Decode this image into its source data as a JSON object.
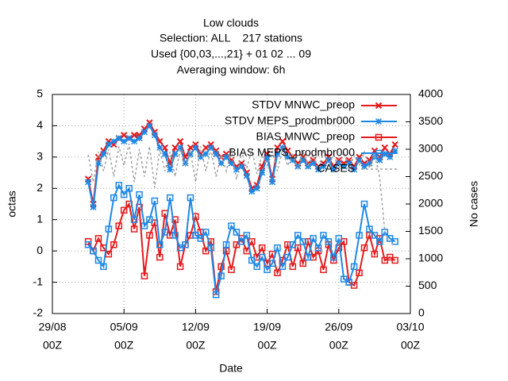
{
  "chart_data": {
    "type": "line",
    "title": [
      "Low clouds",
      "Selection: ALL    217 stations",
      "Used {00,03,...,21} + 01 02 ... 09",
      "Averaging window:  6h"
    ],
    "xlabel": "Date",
    "ylabel": "octas",
    "y2label": "No cases",
    "xlim": [
      "29/08 00Z",
      "03/10 00Z"
    ],
    "xticks": [
      {
        "value": "29/08 00Z",
        "label": "29/08",
        "sublabel": "00Z"
      },
      {
        "value": "05/09 00Z",
        "label": "05/09",
        "sublabel": "00Z"
      },
      {
        "value": "12/09 00Z",
        "label": "12/09",
        "sublabel": "00Z"
      },
      {
        "value": "19/09 00Z",
        "label": "19/09",
        "sublabel": "00Z"
      },
      {
        "value": "26/09 00Z",
        "label": "26/09",
        "sublabel": "00Z"
      },
      {
        "value": "03/10 00Z",
        "label": "03/10",
        "sublabel": "00Z"
      }
    ],
    "ylim": [
      -2,
      5
    ],
    "yticks": [
      -2,
      -1,
      0,
      1,
      2,
      3,
      4,
      5
    ],
    "y2lim": [
      0,
      4000
    ],
    "y2ticks": [
      0,
      500,
      1000,
      1500,
      2000,
      2500,
      3000,
      3500,
      4000
    ],
    "grid": true,
    "legend": "top right",
    "x": [
      "01/09 12Z",
      "02/09 00Z",
      "02/09 12Z",
      "03/09 00Z",
      "03/09 12Z",
      "04/09 00Z",
      "04/09 12Z",
      "05/09 00Z",
      "05/09 12Z",
      "06/09 00Z",
      "06/09 12Z",
      "07/09 00Z",
      "07/09 12Z",
      "08/09 00Z",
      "08/09 12Z",
      "09/09 00Z",
      "09/09 12Z",
      "10/09 00Z",
      "10/09 12Z",
      "11/09 00Z",
      "11/09 12Z",
      "12/09 00Z",
      "12/09 12Z",
      "13/09 00Z",
      "13/09 12Z",
      "14/09 00Z",
      "14/09 12Z",
      "15/09 00Z",
      "15/09 12Z",
      "16/09 00Z",
      "16/09 12Z",
      "17/09 00Z",
      "17/09 12Z",
      "18/09 00Z",
      "18/09 12Z",
      "19/09 00Z",
      "19/09 12Z",
      "20/09 00Z",
      "20/09 12Z",
      "21/09 00Z",
      "21/09 12Z",
      "22/09 00Z",
      "22/09 12Z",
      "23/09 00Z",
      "23/09 12Z",
      "24/09 00Z",
      "24/09 12Z",
      "25/09 00Z",
      "25/09 12Z",
      "26/09 00Z",
      "26/09 12Z",
      "27/09 00Z",
      "27/09 12Z",
      "28/09 00Z",
      "28/09 12Z",
      "29/09 00Z",
      "29/09 12Z",
      "30/09 00Z",
      "30/09 12Z",
      "01/10 00Z",
      "01/10 12Z"
    ],
    "series": [
      {
        "name": "STDV MNWC_preop",
        "color": "#e41a1c",
        "marker": "x",
        "values": [
          2.3,
          1.5,
          3.0,
          3.2,
          3.5,
          3.4,
          3.6,
          3.7,
          3.6,
          3.7,
          3.7,
          3.9,
          4.1,
          3.8,
          3.5,
          3.3,
          2.8,
          3.3,
          3.5,
          3.0,
          3.3,
          3.4,
          3.1,
          3.3,
          3.4,
          3.2,
          3.0,
          3.1,
          2.9,
          2.7,
          2.8,
          2.5,
          2.0,
          2.1,
          2.7,
          3.1,
          2.3,
          3.3,
          3.5,
          3.2,
          3.0,
          2.8,
          3.0,
          2.8,
          2.9,
          2.7,
          2.8,
          3.0,
          2.7,
          2.9,
          2.8,
          2.9,
          2.7,
          3.0,
          2.8,
          2.9,
          3.2,
          3.0,
          3.3,
          3.1,
          3.4
        ]
      },
      {
        "name": "STDV MEPS_prodmbr000",
        "color": "#1e88e5",
        "marker": "star",
        "values": [
          2.2,
          1.4,
          2.8,
          3.1,
          3.4,
          3.5,
          3.6,
          3.5,
          3.6,
          3.5,
          3.6,
          3.8,
          4.0,
          3.7,
          3.3,
          3.1,
          2.6,
          3.1,
          3.3,
          2.8,
          3.1,
          3.3,
          3.0,
          3.1,
          3.3,
          3.1,
          2.8,
          3.0,
          2.8,
          2.6,
          2.7,
          2.4,
          1.9,
          2.0,
          2.5,
          3.0,
          2.2,
          3.1,
          3.3,
          3.0,
          2.9,
          2.7,
          2.9,
          2.7,
          2.8,
          2.6,
          2.7,
          2.9,
          2.6,
          2.8,
          2.7,
          2.8,
          2.6,
          2.9,
          2.7,
          2.8,
          3.0,
          2.9,
          3.1,
          3.0,
          3.2
        ]
      },
      {
        "name": "BIAS MNWC_preop",
        "color": "#e41a1c",
        "marker": "square",
        "values": [
          0.3,
          0.0,
          0.4,
          0.1,
          -0.1,
          0.2,
          0.8,
          1.3,
          1.5,
          0.7,
          1.4,
          -0.8,
          0.5,
          0.9,
          -0.2,
          1.2,
          0.5,
          1.0,
          -0.5,
          0.2,
          0.5,
          1.1,
          0.6,
          0.0,
          0.3,
          -1.3,
          -0.5,
          0.0,
          -0.6,
          0.2,
          0.4,
          0.0,
          0.3,
          -0.2,
          0.1,
          -0.4,
          -0.1,
          -0.7,
          -0.3,
          0.2,
          -0.5,
          0.1,
          -0.4,
          0.3,
          -0.2,
          0.0,
          -0.6,
          0.2,
          -0.3,
          0.1,
          0.3,
          -1.0,
          -1.1,
          -0.7,
          0.1,
          0.5,
          -0.1,
          0.4,
          -0.3,
          -0.2,
          -0.3
        ]
      },
      {
        "name": "BIAS MEPS_prodmbr000",
        "color": "#1e88e5",
        "marker": "square",
        "values": [
          0.2,
          0.0,
          -0.3,
          -0.5,
          0.7,
          1.7,
          2.1,
          1.8,
          2.0,
          1.0,
          1.8,
          0.8,
          1.0,
          1.6,
          0.2,
          0.6,
          1.7,
          0.5,
          0.1,
          0.2,
          1.7,
          0.5,
          0.4,
          0.6,
          0.1,
          -1.4,
          -0.8,
          0.2,
          0.8,
          0.6,
          0.3,
          0.5,
          -0.3,
          -0.5,
          -0.2,
          -0.6,
          -0.4,
          0.1,
          -0.5,
          -0.2,
          0.2,
          0.5,
          0.3,
          -0.2,
          0.4,
          0.1,
          0.5,
          0.3,
          -0.2,
          0.4,
          -0.9,
          -1.0,
          -0.5,
          0.5,
          1.5,
          0.7,
          0.5,
          0.3,
          0.6,
          0.4,
          0.3
        ]
      },
      {
        "name": "CASES",
        "color": "#a0a0a0",
        "marker": "none",
        "dashed": true,
        "axis": "y2",
        "values": [
          2900,
          2400,
          2950,
          2600,
          3000,
          2500,
          3050,
          2700,
          3100,
          2400,
          3000,
          2500,
          3050,
          2300,
          3000,
          2600,
          2950,
          2500,
          3000,
          2700,
          2950,
          2400,
          3050,
          2600,
          3000,
          2500,
          2900,
          2600,
          3000,
          2450,
          2950,
          2650,
          3000,
          2550,
          2900,
          2700,
          2950,
          2600,
          3000,
          2700,
          2900,
          2650,
          2950,
          2700,
          2900,
          2650,
          2950,
          2700,
          2900,
          2650,
          2950,
          2600,
          2900,
          2700,
          2950,
          2650,
          2900,
          2500,
          1500,
          1300,
          1250
        ]
      }
    ]
  }
}
